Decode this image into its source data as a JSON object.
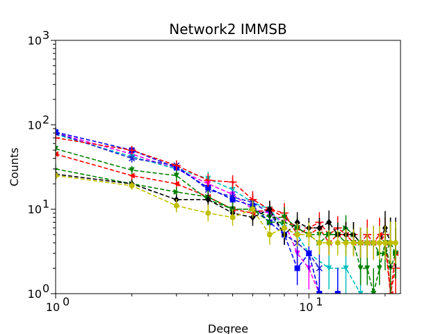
{
  "chart_data": {
    "type": "line",
    "title": "Network2 IMMSB",
    "xlabel": "Degree",
    "ylabel": "Counts",
    "xscale": "log",
    "yscale": "log",
    "xlim": [
      1,
      23
    ],
    "ylim": [
      1,
      1000
    ],
    "x_tick_labels": [
      {
        "value": 1,
        "base": "10",
        "exp": "0"
      },
      {
        "value": 10,
        "base": "10",
        "exp": "1"
      }
    ],
    "y_tick_labels": [
      {
        "value": 1,
        "base": "10",
        "exp": "0"
      },
      {
        "value": 10,
        "base": "10",
        "exp": "1"
      },
      {
        "value": 100,
        "base": "10",
        "exp": "2"
      },
      {
        "value": 1000,
        "base": "10",
        "exp": "3"
      }
    ],
    "grid": false,
    "line_style": "dashed",
    "series": [
      {
        "color": "#ff00ff",
        "marker": "triangle-down",
        "x": [
          1,
          2,
          3,
          4,
          5,
          6,
          7,
          8,
          9,
          10,
          11
        ],
        "y": [
          80,
          45,
          30,
          20,
          15,
          10,
          9,
          7,
          3,
          2,
          1
        ],
        "err": [
          0.06,
          0.05,
          0.06,
          0.08,
          0.08,
          0.1,
          0.1,
          0.12,
          0.2,
          0.25,
          0.3
        ]
      },
      {
        "color": "#00bfbf",
        "marker": "triangle-down",
        "x": [
          1,
          2,
          3,
          4,
          5,
          6,
          7,
          8,
          9,
          10,
          12,
          14,
          16,
          18
        ],
        "y": [
          77,
          42,
          30,
          23,
          17,
          12,
          10,
          6,
          5,
          3,
          2,
          2,
          1,
          1
        ],
        "err": [
          0.06,
          0.05,
          0.06,
          0.08,
          0.08,
          0.1,
          0.1,
          0.12,
          0.15,
          0.2,
          0.25,
          0.3,
          0.3,
          0.3
        ]
      },
      {
        "color": "#1f1fcf",
        "marker": "x",
        "x": [
          1,
          2,
          3,
          4,
          5,
          6,
          7,
          8,
          9,
          10,
          11
        ],
        "y": [
          80,
          40,
          33,
          17,
          14,
          12,
          9,
          5,
          4,
          3,
          2
        ],
        "err": [
          0.06,
          0.05,
          0.06,
          0.08,
          0.08,
          0.1,
          0.1,
          0.12,
          0.15,
          0.2,
          0.25
        ]
      },
      {
        "color": "#0000ff",
        "marker": "square",
        "x": [
          1,
          2,
          3,
          4,
          5,
          6,
          7,
          8,
          9,
          10,
          11,
          13
        ],
        "y": [
          82,
          50,
          31,
          18,
          13,
          11,
          7,
          5,
          2,
          3,
          1,
          1
        ],
        "err": [
          0.06,
          0.05,
          0.06,
          0.08,
          0.08,
          0.1,
          0.1,
          0.12,
          0.2,
          0.2,
          0.3,
          0.3
        ]
      },
      {
        "color": "#ff0000",
        "marker": "plus",
        "x": [
          1,
          2,
          3,
          4,
          5,
          6,
          7,
          8,
          9,
          10,
          11,
          12,
          13,
          14,
          15,
          16,
          17,
          18,
          19,
          20,
          21,
          22
        ],
        "y": [
          70,
          50,
          33,
          22,
          21,
          13,
          10,
          9,
          5,
          6,
          7,
          5,
          6,
          5,
          5,
          4,
          5,
          4,
          4,
          5,
          1,
          2
        ],
        "err": [
          0.06,
          0.05,
          0.06,
          0.08,
          0.08,
          0.1,
          0.1,
          0.12,
          0.12,
          0.12,
          0.12,
          0.14,
          0.14,
          0.15,
          0.15,
          0.18,
          0.18,
          0.2,
          0.2,
          0.2,
          0.3,
          0.3
        ]
      },
      {
        "color": "#ff0000",
        "marker": "triangle-left",
        "x": [
          1,
          2,
          3,
          4,
          5,
          6,
          7,
          8,
          9,
          10,
          11,
          12,
          13,
          14,
          15,
          16,
          17,
          18,
          19,
          20,
          21,
          22
        ],
        "y": [
          45,
          25,
          20,
          14,
          10,
          9,
          10,
          8,
          6,
          5,
          6,
          4,
          5,
          5,
          4,
          4,
          4,
          4,
          5,
          4,
          1,
          3
        ],
        "err": [
          0.06,
          0.05,
          0.06,
          0.08,
          0.08,
          0.1,
          0.1,
          0.12,
          0.12,
          0.12,
          0.12,
          0.14,
          0.14,
          0.15,
          0.15,
          0.18,
          0.18,
          0.2,
          0.2,
          0.2,
          0.3,
          0.3
        ]
      },
      {
        "color": "#008000",
        "marker": "triangle-down",
        "x": [
          1,
          2,
          3,
          4,
          5,
          6,
          7,
          8,
          9,
          10,
          11,
          12,
          13,
          14,
          15,
          16,
          17,
          18,
          19,
          20,
          21,
          22
        ],
        "y": [
          52,
          29,
          25,
          13,
          10,
          10,
          8,
          8,
          6,
          5,
          5,
          5,
          5,
          4,
          4,
          2,
          2,
          1,
          2,
          4,
          2,
          3
        ],
        "err": [
          0.06,
          0.05,
          0.06,
          0.08,
          0.08,
          0.1,
          0.1,
          0.12,
          0.12,
          0.12,
          0.12,
          0.14,
          0.14,
          0.15,
          0.15,
          0.2,
          0.2,
          0.3,
          0.2,
          0.2,
          0.3,
          0.3
        ]
      },
      {
        "color": "#008000",
        "marker": "triangle-right",
        "x": [
          1,
          2,
          3,
          4,
          5,
          6,
          7,
          8,
          9,
          10,
          11,
          12,
          13,
          14,
          15,
          16,
          17,
          18,
          19,
          20,
          21,
          22
        ],
        "y": [
          30,
          20,
          16,
          14,
          10,
          10,
          7,
          7,
          6,
          5,
          4,
          5,
          5,
          6,
          5,
          4,
          4,
          4,
          3,
          3,
          4,
          3
        ],
        "err": [
          0.06,
          0.05,
          0.06,
          0.08,
          0.08,
          0.1,
          0.1,
          0.12,
          0.12,
          0.12,
          0.12,
          0.14,
          0.14,
          0.15,
          0.15,
          0.18,
          0.18,
          0.2,
          0.2,
          0.2,
          0.3,
          0.3
        ]
      },
      {
        "color": "#000000",
        "marker": "diamond",
        "x": [
          1,
          2,
          3,
          4,
          5,
          6,
          7,
          8,
          9,
          10,
          11,
          12,
          13,
          14,
          15,
          16,
          17,
          18,
          19,
          20,
          21,
          22
        ],
        "y": [
          26,
          20,
          13,
          13,
          9,
          8,
          10,
          5,
          7,
          6,
          6,
          7,
          5,
          5,
          5,
          4,
          4,
          4,
          4,
          6,
          4,
          4
        ],
        "err": [
          0.06,
          0.05,
          0.06,
          0.08,
          0.08,
          0.1,
          0.1,
          0.12,
          0.12,
          0.12,
          0.12,
          0.14,
          0.14,
          0.15,
          0.15,
          0.18,
          0.18,
          0.2,
          0.2,
          0.2,
          0.3,
          0.3
        ]
      },
      {
        "color": "#bfbf00",
        "marker": "circle",
        "x": [
          1,
          2,
          3,
          4,
          5,
          6,
          7,
          8,
          9,
          10,
          11,
          12,
          13,
          14,
          15,
          16,
          17,
          18,
          19,
          20,
          21,
          22
        ],
        "y": [
          25,
          19,
          11,
          9,
          8,
          10,
          5,
          6,
          5,
          5,
          4,
          4,
          4,
          4,
          4,
          4,
          4,
          4,
          4,
          4,
          4,
          4
        ],
        "err": [
          0.06,
          0.05,
          0.08,
          0.1,
          0.1,
          0.1,
          0.12,
          0.12,
          0.14,
          0.14,
          0.14,
          0.15,
          0.15,
          0.16,
          0.16,
          0.18,
          0.18,
          0.2,
          0.2,
          0.2,
          0.25,
          0.25
        ]
      }
    ]
  }
}
